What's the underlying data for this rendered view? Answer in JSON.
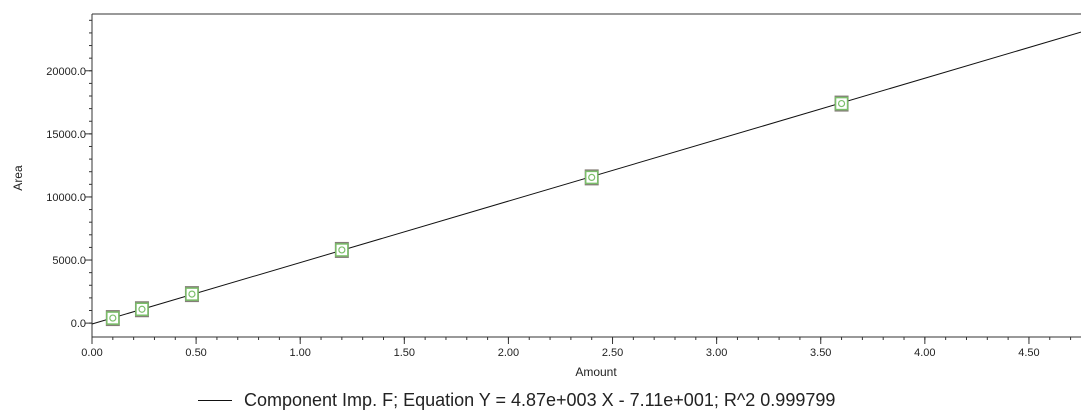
{
  "chart_data": {
    "type": "scatter",
    "title": "",
    "xlabel": "Amount",
    "ylabel": "Area",
    "xlim": [
      0.0,
      4.75
    ],
    "ylim": [
      -1100,
      24500
    ],
    "x_ticks": [
      0.0,
      0.5,
      1.0,
      1.5,
      2.0,
      2.5,
      3.0,
      3.5,
      4.0,
      4.5
    ],
    "x_tick_labels": [
      "0.00",
      "0.50",
      "1.00",
      "1.50",
      "2.00",
      "2.50",
      "3.00",
      "3.50",
      "4.00",
      "4.50"
    ],
    "y_ticks": [
      0,
      5000,
      10000,
      15000,
      20000
    ],
    "y_tick_labels": [
      "0.0",
      "5000.0",
      "10000.0",
      "15000.0",
      "20000.0"
    ],
    "grid": false,
    "series": [
      {
        "name": "Component Imp. F",
        "marker": "square",
        "points": [
          {
            "x": 0.1,
            "y": 400
          },
          {
            "x": 0.24,
            "y": 1100
          },
          {
            "x": 0.48,
            "y": 2300
          },
          {
            "x": 1.2,
            "y": 5800
          },
          {
            "x": 2.4,
            "y": 11550
          },
          {
            "x": 3.6,
            "y": 17400
          }
        ]
      }
    ],
    "fit_line": {
      "slope": 4870,
      "intercept": -71.1,
      "x_range": [
        0.0,
        4.75
      ],
      "color": "#111111"
    },
    "legend": {
      "position": "bottom",
      "text": "Component Imp. F; Equation Y = 4.87e+003 X - 7.11e+001; R^2 0.999799"
    },
    "colors": {
      "marker_outer": "#6e6660",
      "marker_inner": "#7bbf6a",
      "axis": "#333333"
    }
  }
}
